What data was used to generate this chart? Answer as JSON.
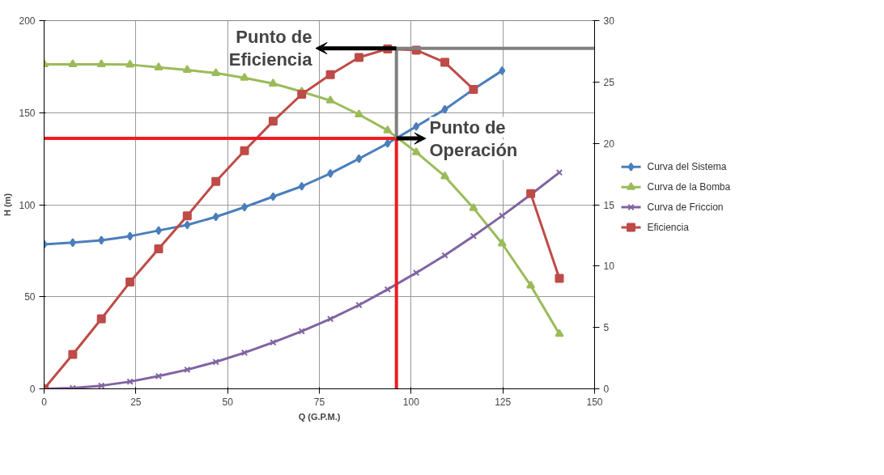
{
  "chart_data": {
    "type": "line",
    "xlabel": "Q (G.P.M.)",
    "ylabel": "H (m)",
    "xlim": [
      0,
      150
    ],
    "xticks": [
      0,
      25,
      50,
      75,
      100,
      125,
      150
    ],
    "ylim": [
      0,
      200
    ],
    "yticks": [
      0,
      50,
      100,
      150,
      200
    ],
    "y2lim": [
      0,
      30
    ],
    "y2ticks": [
      0,
      5,
      10,
      15,
      20,
      25,
      30
    ],
    "grid": true,
    "legend": "right",
    "series": [
      {
        "name": "Curva del Sistema",
        "color": "#4a7ebb",
        "marker": "diamond",
        "x": [
          0,
          7.8,
          15.6,
          23.4,
          31.2,
          39,
          46.8,
          54.6,
          62.4,
          70.2,
          78,
          85.8,
          93.6,
          101.4,
          109.2,
          117,
          124.8
        ],
        "values": [
          78.5,
          79.4,
          80.7,
          82.9,
          86,
          89,
          93.4,
          98.7,
          104.4,
          110,
          117,
          125,
          133.3,
          142.5,
          151.8,
          162.7,
          172.8
        ]
      },
      {
        "name": "Curva de la Bomba",
        "color": "#9bbb59",
        "marker": "triangle",
        "x": [
          0,
          7.8,
          15.6,
          23.4,
          31.2,
          39,
          46.8,
          54.6,
          62.4,
          70.2,
          78,
          85.8,
          93.6,
          101.4,
          109.2,
          117,
          124.8,
          132.6,
          140.4
        ],
        "values": [
          176.3,
          176.3,
          176.3,
          176.1,
          174.6,
          173.2,
          171.5,
          168.9,
          165.8,
          161.4,
          156.6,
          149,
          140.4,
          128.5,
          115.4,
          98.2,
          78.9,
          56.1,
          29.8
        ]
      },
      {
        "name": "Curva de Friccion",
        "color": "#8064a2",
        "marker": "x",
        "x": [
          0,
          7.8,
          15.6,
          23.4,
          31.2,
          39,
          46.8,
          54.6,
          62.4,
          70.2,
          78,
          85.8,
          93.6,
          101.4,
          109.2,
          117,
          124.8,
          132.6,
          140.4
        ],
        "values": [
          0,
          0.4,
          1.7,
          3.9,
          6.9,
          10.4,
          14.6,
          19.6,
          25.2,
          31.3,
          38,
          45.5,
          54,
          63,
          72.5,
          83,
          94,
          105.5,
          117.5
        ]
      },
      {
        "name": "Eficiencia",
        "color": "#be4b48",
        "marker": "square",
        "axis": "y2",
        "x": [
          0,
          7.8,
          15.6,
          23.4,
          31.2,
          39,
          46.8,
          54.6,
          62.4,
          70.2,
          78,
          85.8,
          93.6,
          101.4,
          109.2,
          117,
          124.8,
          132.6,
          140.4
        ],
        "values": [
          0,
          2.8,
          5.7,
          8.7,
          11.4,
          14.1,
          16.9,
          19.4,
          21.8,
          24,
          25.6,
          27,
          27.7,
          27.6,
          26.6,
          24.4,
          null,
          15.9,
          9.0
        ]
      },
      {
        "color": "#ee1c25",
        "x": [
          0,
          96
        ],
        "values": [
          136,
          136
        ]
      },
      {
        "color": "#ee1c25",
        "x": [
          96,
          96
        ],
        "values": [
          0,
          136
        ]
      },
      {
        "color": "#808080",
        "x": [
          96,
          150
        ],
        "values": [
          185,
          185
        ]
      },
      {
        "color": "#808080",
        "x": [
          96,
          96
        ],
        "values": [
          136,
          185
        ]
      }
    ],
    "annotations": [
      {
        "text": "Punto de Eficiencia",
        "x": 96,
        "y": 185
      },
      {
        "text": "Punto de Operación",
        "x": 96,
        "y": 136
      }
    ]
  }
}
